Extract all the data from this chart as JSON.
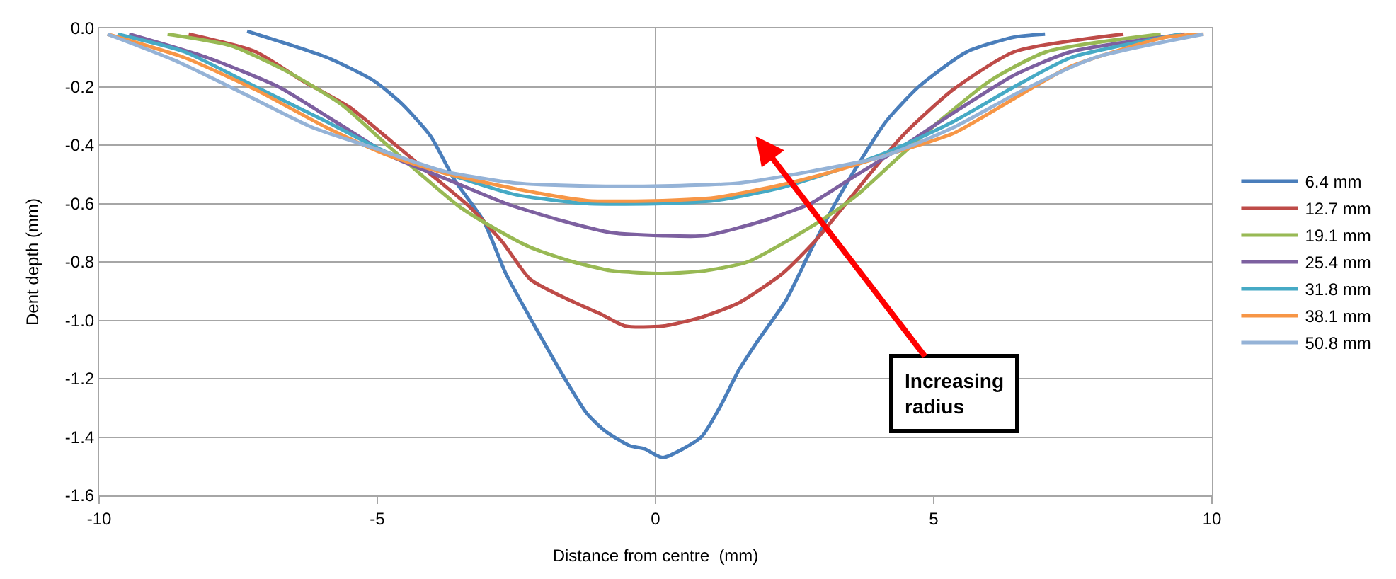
{
  "chart_data": {
    "type": "line",
    "xlabel": "Distance from centre  (mm)",
    "ylabel": "Dent depth (mm)",
    "xlim": [
      -10,
      10
    ],
    "xticks": [
      -10,
      -5,
      0,
      5,
      10
    ],
    "ylim": [
      -1.6,
      0
    ],
    "yticks": [
      {
        "value": -1.6,
        "label": "-1.6"
      },
      {
        "value": -1.4,
        "label": "-1.4"
      },
      {
        "value": -1.2,
        "label": "-1.2"
      },
      {
        "value": -1.0,
        "label": "-1.0"
      },
      {
        "value": -0.8,
        "label": "-0.8"
      },
      {
        "value": -0.6,
        "label": "-0.6"
      },
      {
        "value": -0.4,
        "label": "-0.4"
      },
      {
        "value": -0.2,
        "label": "-0.2"
      },
      {
        "value": 0,
        "label": "0.0"
      }
    ],
    "grid": "y",
    "legend": "right",
    "marker": "none",
    "line_style": "solid",
    "ref_lines": [
      {
        "axis": "x",
        "value": 0,
        "label": null,
        "color": "#a6a6a6"
      }
    ],
    "annotations": [
      "Increasing\nradius"
    ],
    "series": [
      {
        "name": "6.4 mm",
        "color": "#4a7ebb",
        "x": [
          -7.34,
          -5.9,
          -5.06,
          -4.55,
          -4.04,
          -3.61,
          -3.09,
          -2.69,
          -2.17,
          -1.66,
          -1.23,
          -0.9,
          -0.46,
          -0.2,
          0.13,
          0.82,
          1.15,
          1.5,
          1.84,
          2.35,
          2.79,
          3.2,
          3.63,
          4.14,
          4.73,
          5.6,
          6.45,
          7.0
        ],
        "values": [
          -0.01,
          -0.1,
          -0.18,
          -0.26,
          -0.37,
          -0.52,
          -0.66,
          -0.84,
          -1.02,
          -1.19,
          -1.32,
          -1.38,
          -1.43,
          -1.44,
          -1.47,
          -1.4,
          -1.3,
          -1.17,
          -1.07,
          -0.93,
          -0.76,
          -0.61,
          -0.47,
          -0.32,
          -0.2,
          -0.08,
          -0.03,
          -0.02
        ]
      },
      {
        "name": "12.7 mm",
        "color": "#be4b48",
        "x": [
          -8.39,
          -7.19,
          -6.34,
          -5.5,
          -4.73,
          -4.04,
          -3.35,
          -2.76,
          -2.25,
          -1.56,
          -0.97,
          -0.54,
          0.13,
          0.82,
          1.5,
          2.28,
          2.86,
          3.38,
          3.89,
          4.48,
          5.35,
          6.45,
          8.41
        ],
        "values": [
          -0.02,
          -0.08,
          -0.18,
          -0.27,
          -0.39,
          -0.5,
          -0.61,
          -0.73,
          -0.86,
          -0.93,
          -0.98,
          -1.02,
          -1.02,
          -0.99,
          -0.94,
          -0.84,
          -0.73,
          -0.61,
          -0.49,
          -0.36,
          -0.21,
          -0.08,
          -0.02
        ]
      },
      {
        "name": "19.1 mm",
        "color": "#98b954",
        "x": [
          -8.77,
          -7.62,
          -6.6,
          -5.65,
          -4.88,
          -4.22,
          -3.53,
          -2.94,
          -2.25,
          -1.48,
          -0.79,
          0.13,
          0.9,
          1.66,
          2.35,
          3.04,
          3.63,
          4.32,
          5.09,
          6.01,
          7.03,
          9.08
        ],
        "values": [
          -0.02,
          -0.06,
          -0.15,
          -0.26,
          -0.39,
          -0.5,
          -0.61,
          -0.68,
          -0.75,
          -0.8,
          -0.83,
          -0.84,
          -0.83,
          -0.8,
          -0.73,
          -0.65,
          -0.57,
          -0.45,
          -0.32,
          -0.18,
          -0.08,
          -0.02
        ]
      },
      {
        "name": "25.4 mm",
        "color": "#7d60a0",
        "x": [
          -9.46,
          -8.06,
          -6.78,
          -5.75,
          -4.73,
          -3.71,
          -2.69,
          -1.66,
          -0.79,
          0.13,
          0.9,
          1.92,
          2.79,
          3.63,
          4.48,
          5.35,
          6.45,
          7.47,
          9.51
        ],
        "values": [
          -0.02,
          -0.1,
          -0.2,
          -0.32,
          -0.44,
          -0.52,
          -0.6,
          -0.66,
          -0.7,
          -0.71,
          -0.71,
          -0.66,
          -0.6,
          -0.5,
          -0.4,
          -0.29,
          -0.16,
          -0.08,
          -0.02
        ]
      },
      {
        "name": "31.8 mm",
        "color": "#46aac5",
        "x": [
          -9.67,
          -8.47,
          -7.19,
          -5.91,
          -4.88,
          -3.71,
          -2.51,
          -1.23,
          0.13,
          1.07,
          2.17,
          3.2,
          4.22,
          5.35,
          6.45,
          7.47,
          9.44
        ],
        "values": [
          -0.02,
          -0.08,
          -0.2,
          -0.32,
          -0.42,
          -0.5,
          -0.57,
          -0.6,
          -0.6,
          -0.59,
          -0.55,
          -0.49,
          -0.42,
          -0.32,
          -0.2,
          -0.1,
          -0.02
        ]
      },
      {
        "name": "38.1 mm",
        "color": "#f79646",
        "x": [
          -9.85,
          -8.47,
          -7.19,
          -5.91,
          -4.88,
          -3.71,
          -2.51,
          -1.23,
          0.13,
          1.07,
          2.17,
          3.2,
          4.22,
          5.35,
          6.45,
          7.47,
          9.18,
          9.85
        ],
        "values": [
          -0.02,
          -0.1,
          -0.21,
          -0.34,
          -0.43,
          -0.5,
          -0.55,
          -0.59,
          -0.59,
          -0.58,
          -0.54,
          -0.49,
          -0.43,
          -0.36,
          -0.24,
          -0.13,
          -0.03,
          -0.02
        ]
      },
      {
        "name": "50.8 mm",
        "color": "#95b3d7",
        "x": [
          -9.85,
          -8.64,
          -7.44,
          -6.16,
          -5.06,
          -3.79,
          -2.51,
          -1.23,
          0.13,
          1.5,
          2.79,
          4.07,
          5.35,
          6.62,
          7.9,
          9.85
        ],
        "values": [
          -0.02,
          -0.11,
          -0.22,
          -0.34,
          -0.41,
          -0.49,
          -0.53,
          -0.54,
          -0.54,
          -0.53,
          -0.49,
          -0.44,
          -0.34,
          -0.21,
          -0.1,
          -0.02
        ]
      }
    ]
  }
}
